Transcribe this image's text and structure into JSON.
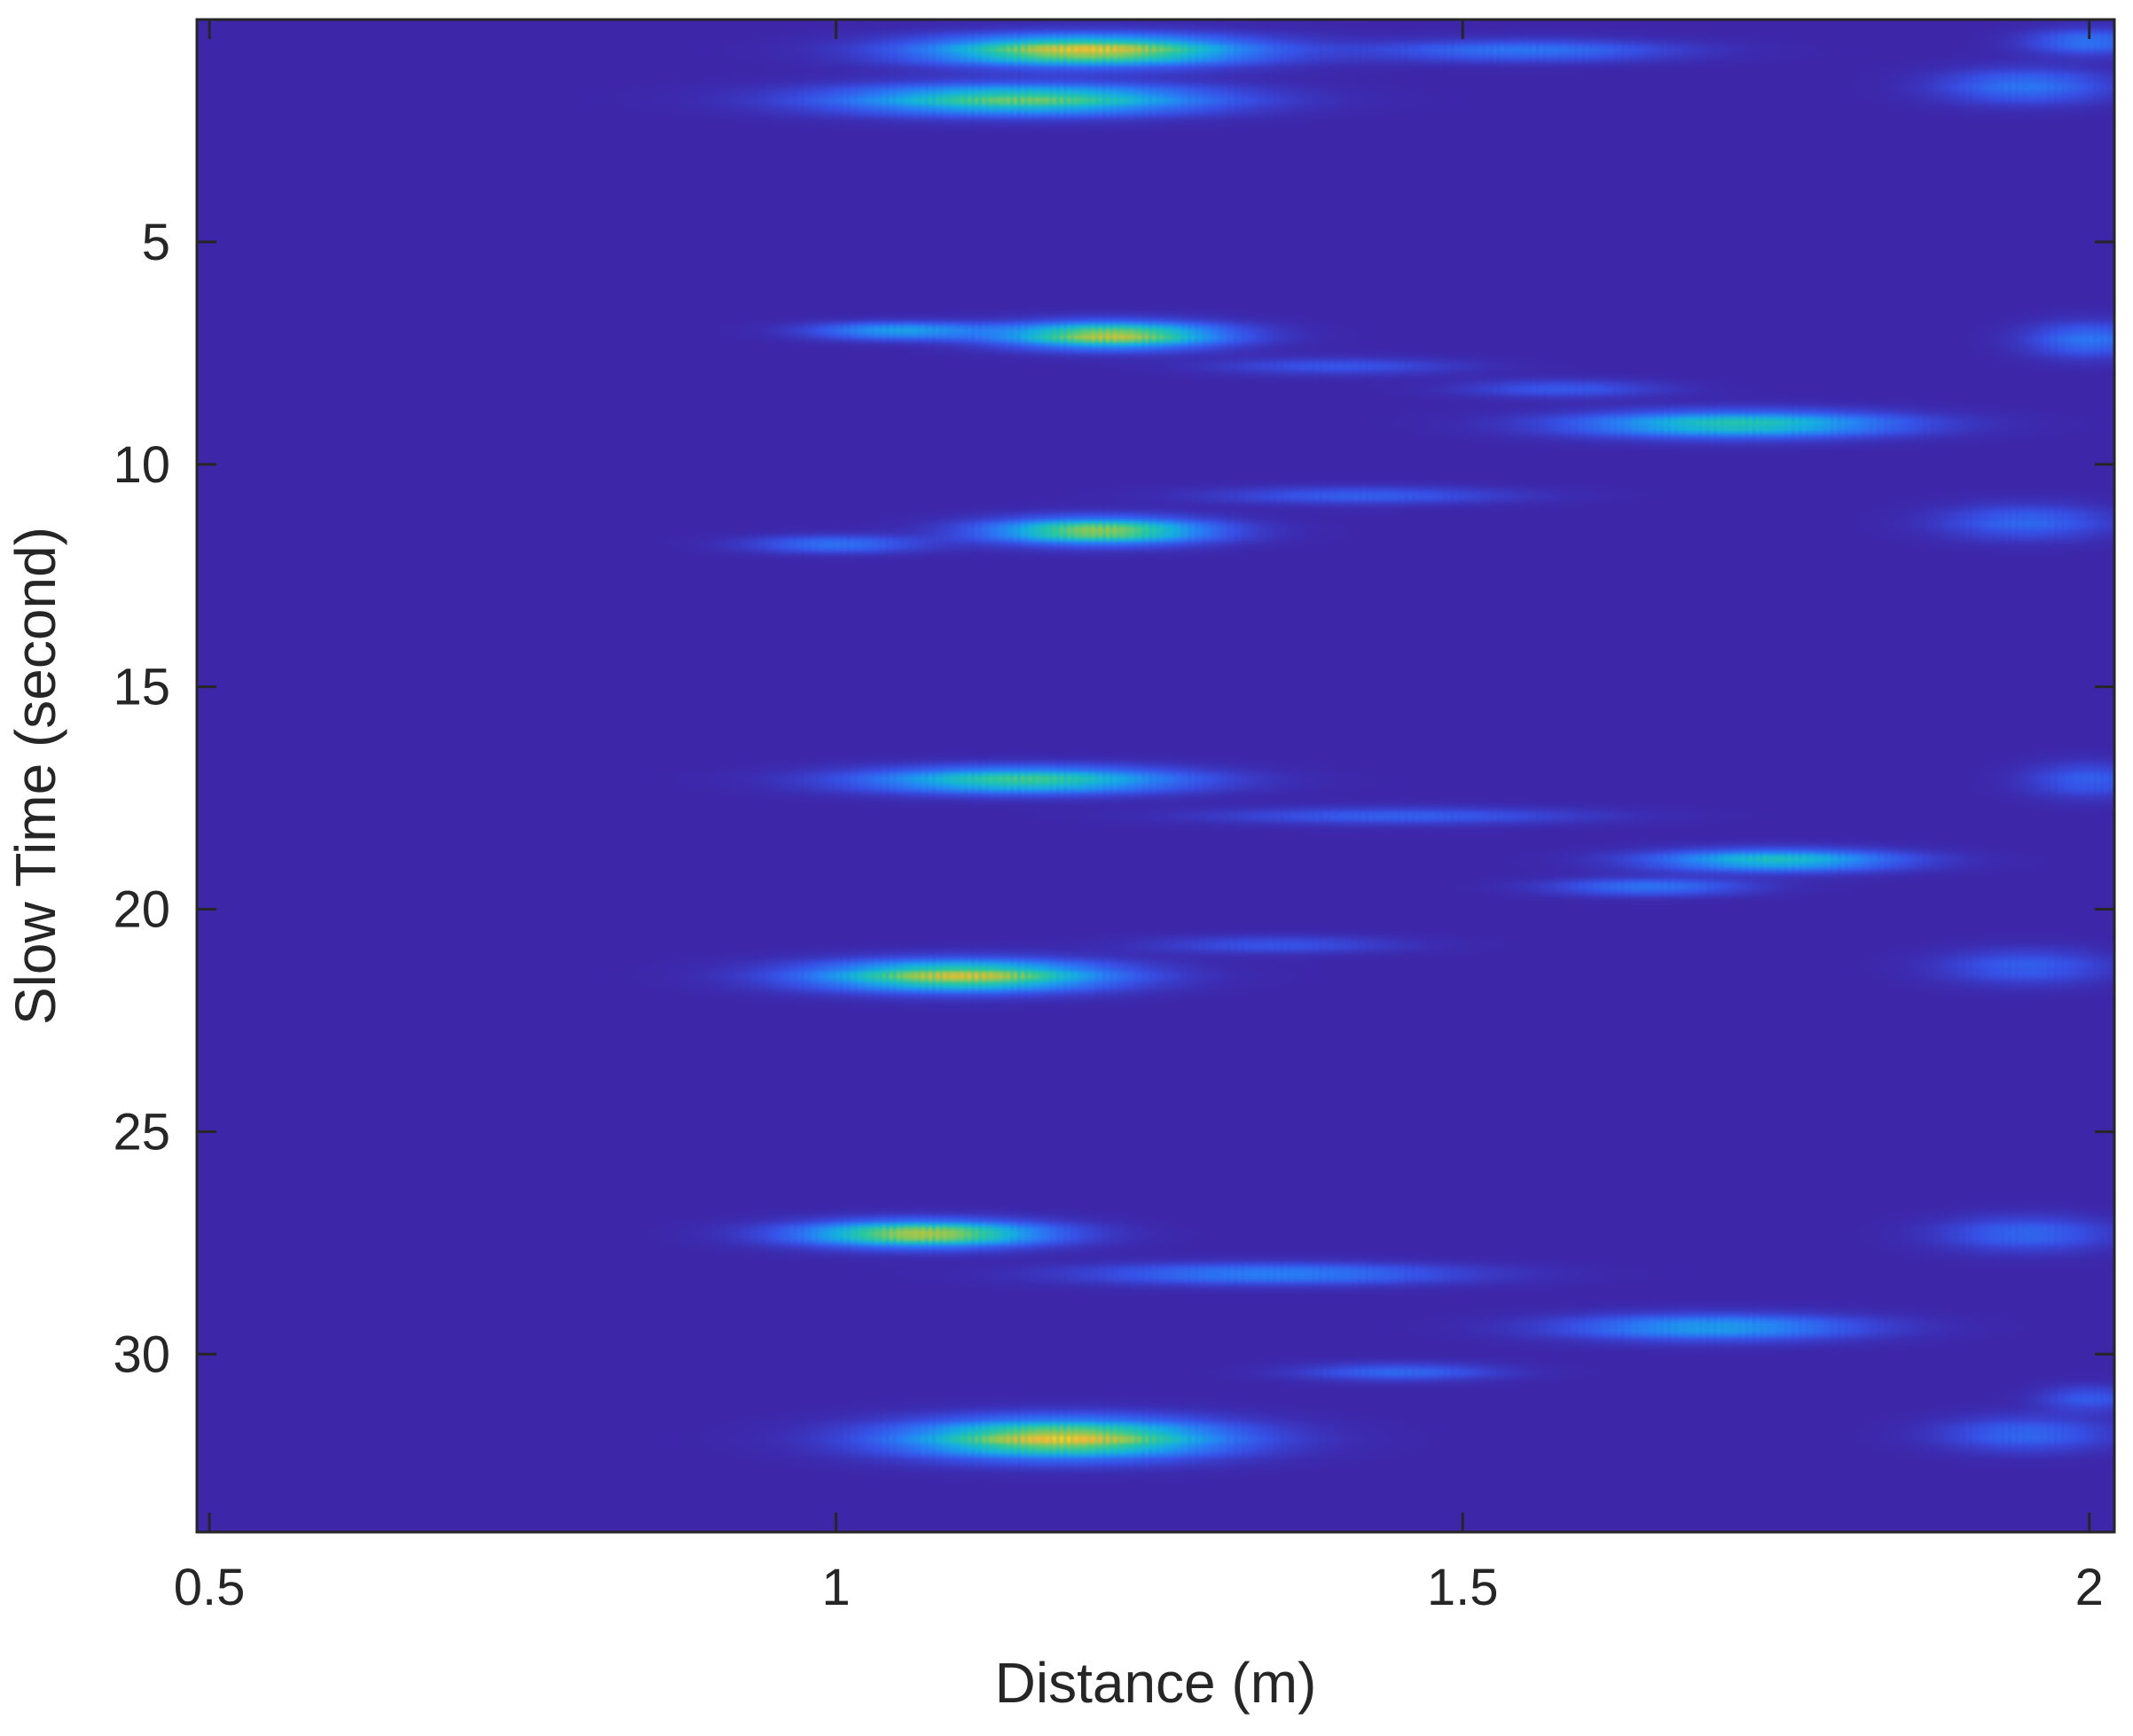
{
  "chart_data": {
    "type": "heatmap",
    "title": "",
    "xlabel": "Distance (m)",
    "ylabel": "Slow Time (second)",
    "xlim": [
      0.49,
      2.02
    ],
    "ylim": [
      34,
      0
    ],
    "y_axis_reversed": true,
    "xticks": [
      0.5,
      1,
      1.5,
      2
    ],
    "xtick_labels": [
      "0.5",
      "1",
      "1.5",
      "2"
    ],
    "yticks": [
      5,
      10,
      15,
      20,
      25,
      30
    ],
    "ytick_labels": [
      "5",
      "10",
      "15",
      "20",
      "25",
      "30"
    ],
    "grid": false,
    "colormap": "jet",
    "background_color": "#3d26a8",
    "value_range": [
      0,
      1
    ],
    "hotspots": [
      {
        "x": 1.2,
        "y": 0.7,
        "x_spread": 0.13,
        "y_spread": 0.35,
        "intensity": 0.95,
        "tilt": 0.0
      },
      {
        "x": 1.15,
        "y": 1.8,
        "x_spread": 0.15,
        "y_spread": 0.35,
        "intensity": 0.75,
        "tilt": 0.0
      },
      {
        "x": 1.55,
        "y": 0.7,
        "x_spread": 0.12,
        "y_spread": 0.25,
        "intensity": 0.3,
        "tilt": 0.0
      },
      {
        "x": 2.0,
        "y": 0.5,
        "x_spread": 0.05,
        "y_spread": 0.3,
        "intensity": 0.3,
        "tilt": 0.0
      },
      {
        "x": 1.95,
        "y": 1.5,
        "x_spread": 0.07,
        "y_spread": 0.4,
        "intensity": 0.3,
        "tilt": 0.0
      },
      {
        "x": 1.05,
        "y": 7.0,
        "x_spread": 0.07,
        "y_spread": 0.2,
        "intensity": 0.45,
        "tilt": 0.0
      },
      {
        "x": 1.22,
        "y": 7.1,
        "x_spread": 0.09,
        "y_spread": 0.3,
        "intensity": 0.9,
        "tilt": 0.0
      },
      {
        "x": 1.4,
        "y": 7.8,
        "x_spread": 0.1,
        "y_spread": 0.2,
        "intensity": 0.18,
        "tilt": 0.0
      },
      {
        "x": 1.58,
        "y": 8.3,
        "x_spread": 0.08,
        "y_spread": 0.2,
        "intensity": 0.2,
        "tilt": 0.0
      },
      {
        "x": 1.72,
        "y": 9.1,
        "x_spread": 0.13,
        "y_spread": 0.3,
        "intensity": 0.65,
        "tilt": 0.0
      },
      {
        "x": 2.0,
        "y": 7.2,
        "x_spread": 0.05,
        "y_spread": 0.4,
        "intensity": 0.3,
        "tilt": 0.0
      },
      {
        "x": 1.21,
        "y": 11.5,
        "x_spread": 0.09,
        "y_spread": 0.3,
        "intensity": 0.85,
        "tilt": 0.0
      },
      {
        "x": 1.0,
        "y": 11.8,
        "x_spread": 0.07,
        "y_spread": 0.2,
        "intensity": 0.3,
        "tilt": 0.0
      },
      {
        "x": 1.42,
        "y": 10.7,
        "x_spread": 0.12,
        "y_spread": 0.2,
        "intensity": 0.22,
        "tilt": 0.0
      },
      {
        "x": 1.95,
        "y": 11.3,
        "x_spread": 0.07,
        "y_spread": 0.4,
        "intensity": 0.25,
        "tilt": 0.0
      },
      {
        "x": 1.15,
        "y": 17.1,
        "x_spread": 0.13,
        "y_spread": 0.3,
        "intensity": 0.7,
        "tilt": 0.0
      },
      {
        "x": 1.45,
        "y": 17.9,
        "x_spread": 0.15,
        "y_spread": 0.2,
        "intensity": 0.22,
        "tilt": 0.0
      },
      {
        "x": 1.75,
        "y": 18.9,
        "x_spread": 0.1,
        "y_spread": 0.25,
        "intensity": 0.6,
        "tilt": 0.0
      },
      {
        "x": 1.65,
        "y": 19.5,
        "x_spread": 0.08,
        "y_spread": 0.2,
        "intensity": 0.3,
        "tilt": 0.0
      },
      {
        "x": 2.0,
        "y": 17.1,
        "x_spread": 0.05,
        "y_spread": 0.4,
        "intensity": 0.22,
        "tilt": 0.0
      },
      {
        "x": 1.1,
        "y": 21.5,
        "x_spread": 0.12,
        "y_spread": 0.35,
        "intensity": 0.9,
        "tilt": 0.0
      },
      {
        "x": 1.35,
        "y": 20.8,
        "x_spread": 0.1,
        "y_spread": 0.2,
        "intensity": 0.18,
        "tilt": 0.0
      },
      {
        "x": 1.95,
        "y": 21.3,
        "x_spread": 0.07,
        "y_spread": 0.4,
        "intensity": 0.22,
        "tilt": 0.0
      },
      {
        "x": 1.07,
        "y": 27.3,
        "x_spread": 0.1,
        "y_spread": 0.3,
        "intensity": 0.9,
        "tilt": 0.0
      },
      {
        "x": 1.35,
        "y": 28.2,
        "x_spread": 0.15,
        "y_spread": 0.25,
        "intensity": 0.35,
        "tilt": 0.0
      },
      {
        "x": 1.7,
        "y": 29.4,
        "x_spread": 0.12,
        "y_spread": 0.3,
        "intensity": 0.45,
        "tilt": 0.0
      },
      {
        "x": 1.45,
        "y": 30.4,
        "x_spread": 0.08,
        "y_spread": 0.2,
        "intensity": 0.25,
        "tilt": 0.0
      },
      {
        "x": 1.95,
        "y": 27.3,
        "x_spread": 0.07,
        "y_spread": 0.4,
        "intensity": 0.25,
        "tilt": 0.0
      },
      {
        "x": 1.18,
        "y": 31.9,
        "x_spread": 0.13,
        "y_spread": 0.45,
        "intensity": 0.95,
        "tilt": 0.0
      },
      {
        "x": 1.95,
        "y": 31.8,
        "x_spread": 0.07,
        "y_spread": 0.4,
        "intensity": 0.25,
        "tilt": 0.0
      },
      {
        "x": 2.0,
        "y": 31.0,
        "x_spread": 0.04,
        "y_spread": 0.3,
        "intensity": 0.2,
        "tilt": 0.0
      }
    ]
  }
}
